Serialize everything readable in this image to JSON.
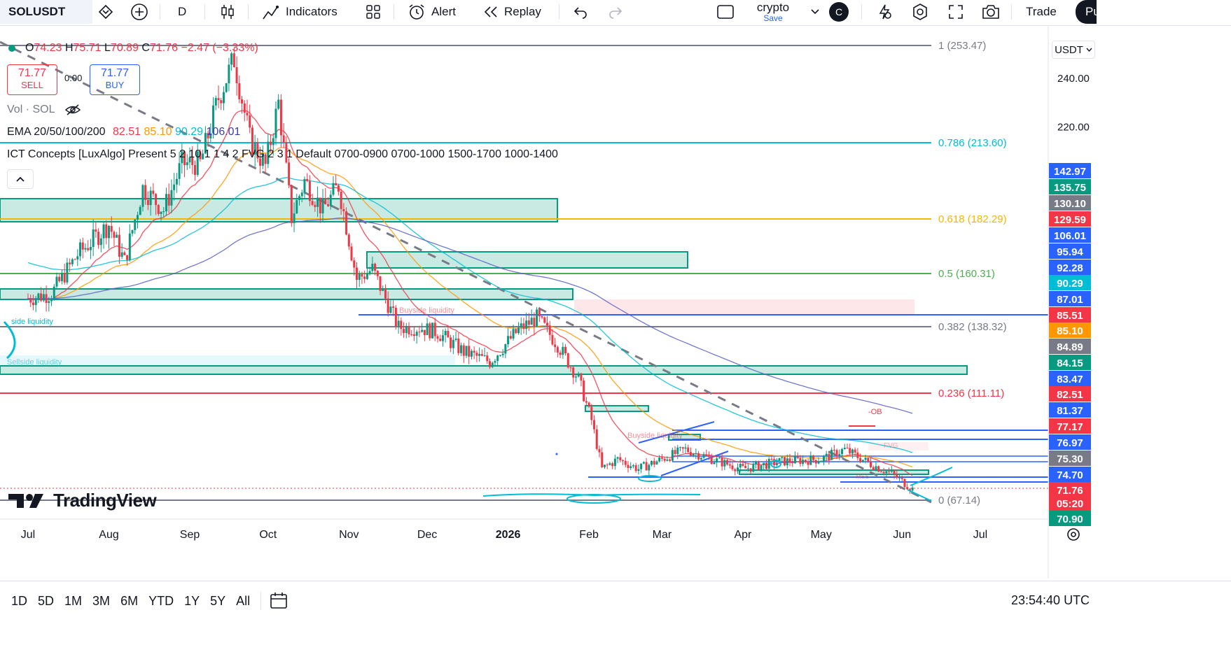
{
  "toolbar": {
    "symbol": "SOLUSDT",
    "interval": "D",
    "indicators_label": "Indicators",
    "alert_label": "Alert",
    "replay_label": "Replay",
    "layout_name": "crypto",
    "layout_save": "Save",
    "avatar_letter": "C",
    "trade_label": "Trade",
    "publish_label": "Pu"
  },
  "legend": {
    "ohlc_o_label": "O",
    "ohlc_o": "74.23",
    "ohlc_h_label": "H",
    "ohlc_h": "75.71",
    "ohlc_l_label": "L",
    "ohlc_l": "70.89",
    "ohlc_c_label": "C",
    "ohlc_c": "71.76",
    "change": "−2.47 (−3.33%)",
    "sell_price": "71.77",
    "sell_label": "SELL",
    "spread": "0.00",
    "buy_price": "71.77",
    "buy_label": "BUY",
    "vol_label": "Vol · SOL",
    "ema_label": "EMA 20/50/100/200",
    "ema20": "82.51",
    "ema50": "85.10",
    "ema100": "90.29",
    "ema200": "106.01",
    "ict_label": "ICT Concepts [LuxAlgo] Present 5 2 10 1 1 4 2 FVG 2 3 1 Default 0700-0900 0700-1000 1500-1700 1000-1400"
  },
  "watermark": "TradingView",
  "currency": "USDT",
  "chart_labels": {
    "buyside": "Buyside liquidity",
    "buyside2": "Buyside liquidity",
    "sellside": "Sellside liquidity",
    "sellside_top": "side liquidity",
    "ob": "-OB",
    "fvg": "FVG",
    "mss": "MSS"
  },
  "bottom": {
    "ranges": [
      "1D",
      "5D",
      "1M",
      "3M",
      "6M",
      "YTD",
      "1Y",
      "5Y",
      "All"
    ],
    "clock": "23:54:40 UTC"
  },
  "colors": {
    "up": "#089981",
    "down": "#f23645",
    "ema20": "#f23645",
    "ema50": "#ff9800",
    "ema100": "#00bcd4",
    "ema200": "#5b5fc7",
    "fib": "#787b86"
  },
  "chart_data": {
    "type": "candlestick",
    "symbol": "SOLUSDT",
    "interval": "1D",
    "x_ticks": [
      "Jul",
      "Aug",
      "Sep",
      "Oct",
      "Nov",
      "Dec",
      "2026",
      "Feb",
      "Mar",
      "Apr",
      "May",
      "Jun",
      "Jul"
    ],
    "y_ticks": [
      240,
      220
    ],
    "close_path": [
      [
        "2025-07-01",
        150
      ],
      [
        "2025-07-10",
        152
      ],
      [
        "2025-07-20",
        168
      ],
      [
        "2025-08-01",
        180
      ],
      [
        "2025-08-07",
        165
      ],
      [
        "2025-08-14",
        195
      ],
      [
        "2025-08-22",
        186
      ],
      [
        "2025-08-29",
        205
      ],
      [
        "2025-09-05",
        205
      ],
      [
        "2025-09-12",
        232
      ],
      [
        "2025-09-18",
        248
      ],
      [
        "2025-09-24",
        215
      ],
      [
        "2025-09-30",
        204
      ],
      [
        "2025-10-05",
        230
      ],
      [
        "2025-10-10",
        183
      ],
      [
        "2025-10-15",
        198
      ],
      [
        "2025-10-22",
        186
      ],
      [
        "2025-10-28",
        196
      ],
      [
        "2025-11-04",
        158
      ],
      [
        "2025-11-10",
        162
      ],
      [
        "2025-11-20",
        138
      ],
      [
        "2025-11-28",
        138
      ],
      [
        "2025-12-05",
        136
      ],
      [
        "2025-12-15",
        128
      ],
      [
        "2025-12-25",
        124
      ],
      [
        "2026-01-05",
        137
      ],
      [
        "2026-01-12",
        142
      ],
      [
        "2026-01-20",
        131
      ],
      [
        "2026-01-28",
        117
      ],
      [
        "2026-02-02",
        100
      ],
      [
        "2026-02-06",
        80
      ],
      [
        "2026-02-12",
        84
      ],
      [
        "2026-02-20",
        80
      ],
      [
        "2026-03-01",
        84
      ],
      [
        "2026-03-10",
        88
      ],
      [
        "2026-03-20",
        84
      ],
      [
        "2026-04-01",
        80
      ],
      [
        "2026-04-15",
        83
      ],
      [
        "2026-05-01",
        84
      ],
      [
        "2026-05-10",
        88
      ],
      [
        "2026-05-20",
        82
      ],
      [
        "2026-05-28",
        78
      ],
      [
        "2026-06-05",
        71.76
      ]
    ],
    "fib_levels": [
      {
        "label": "1 (253.47)",
        "value": 253.47
      },
      {
        "label": "0.786 (213.60)",
        "value": 213.6
      },
      {
        "label": "0.618 (182.29)",
        "value": 182.29
      },
      {
        "label": "0.5 (160.31)",
        "value": 160.31
      },
      {
        "label": "0.382 (138.32)",
        "value": 138.32
      },
      {
        "label": "0.236 (111.11)",
        "value": 111.11
      },
      {
        "label": "0 (67.14)",
        "value": 67.14
      }
    ],
    "price_badges": [
      {
        "value": "142.97",
        "color": "#2962ff"
      },
      {
        "value": "135.75",
        "color": "#089981"
      },
      {
        "value": "130.10",
        "color": "#787b86"
      },
      {
        "value": "129.59",
        "color": "#f23645"
      },
      {
        "value": "106.01",
        "color": "#2962ff"
      },
      {
        "value": "95.94",
        "color": "#2962ff"
      },
      {
        "value": "92.28",
        "color": "#2962ff"
      },
      {
        "value": "90.29",
        "color": "#00bcd4"
      },
      {
        "value": "87.01",
        "color": "#2962ff"
      },
      {
        "value": "85.51",
        "color": "#f23645"
      },
      {
        "value": "85.10",
        "color": "#ff9800"
      },
      {
        "value": "84.89",
        "color": "#787b86"
      },
      {
        "value": "84.15",
        "color": "#089981"
      },
      {
        "value": "83.47",
        "color": "#2962ff"
      },
      {
        "value": "82.51",
        "color": "#f23645"
      },
      {
        "value": "81.37",
        "color": "#2962ff"
      },
      {
        "value": "77.17",
        "color": "#f23645"
      },
      {
        "value": "76.97",
        "color": "#2962ff"
      },
      {
        "value": "75.30",
        "color": "#787b86"
      },
      {
        "value": "74.70",
        "color": "#2962ff"
      },
      {
        "value": "71.76",
        "color": "#f23645"
      },
      {
        "value": "05:20",
        "color": "#f23645"
      },
      {
        "value": "70.90",
        "color": "#089981"
      }
    ],
    "legend": [
      "EMA 20",
      "EMA 50",
      "EMA 100",
      "EMA 200"
    ]
  }
}
